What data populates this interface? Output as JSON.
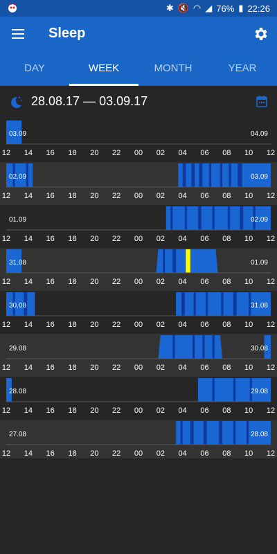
{
  "status": {
    "battery": "76%",
    "time": "22:26"
  },
  "appbar": {
    "title": "Sleep"
  },
  "tabs": [
    {
      "label": "DAY",
      "active": false
    },
    {
      "label": "WEEK",
      "active": true
    },
    {
      "label": "MONTH",
      "active": false
    },
    {
      "label": "YEAR",
      "active": false
    }
  ],
  "range_label": "28.08.17 — 03.09.17",
  "colors": {
    "bar": "#1a66d2",
    "deep": "#0c3a9e",
    "awake": "#ffff00",
    "row_band": "#333333",
    "text": "#ffffff"
  },
  "chart_data": {
    "type": "bar",
    "x_ticks": [
      "12",
      "14",
      "16",
      "18",
      "20",
      "22",
      "00",
      "02",
      "04",
      "06",
      "08",
      "10",
      "12"
    ],
    "rows": [
      {
        "left_label": "03.09",
        "right_label": "04.09",
        "sessions": [
          {
            "start": 0.0,
            "end": 1.4,
            "deep": []
          }
        ]
      },
      {
        "left_label": "02.09",
        "right_label": "03.09",
        "sessions": [
          {
            "start": 0.0,
            "end": 2.4,
            "deep": [
              [
                0.6,
                0.8
              ],
              [
                1.8,
                2.0
              ]
            ]
          },
          {
            "start": 15.6,
            "end": 24.0,
            "deep": [
              [
                16.0,
                16.3
              ],
              [
                16.8,
                17.1
              ],
              [
                17.5,
                17.8
              ],
              [
                18.4,
                18.6
              ],
              [
                19.4,
                19.6
              ],
              [
                20.2,
                20.4
              ],
              [
                21.0,
                21.4
              ]
            ]
          }
        ]
      },
      {
        "left_label": "01.09",
        "right_label": "02.09",
        "sessions": [
          {
            "start": 14.5,
            "end": 24.0,
            "deep": [
              [
                14.9,
                15.1
              ],
              [
                16.2,
                16.4
              ],
              [
                17.4,
                17.7
              ],
              [
                18.7,
                18.9
              ],
              [
                20.1,
                20.3
              ],
              [
                21.2,
                21.5
              ],
              [
                22.4,
                22.6
              ]
            ]
          }
        ]
      },
      {
        "left_label": "31.08",
        "right_label": "01.09",
        "sessions": [
          {
            "start": 0.0,
            "end": 1.4,
            "deep": []
          },
          {
            "start": 13.6,
            "end": 19.2,
            "deep": [
              [
                14.2,
                14.4
              ],
              [
                15.1,
                15.4
              ]
            ]
          }
        ],
        "awake": [
          [
            16.3,
            16.7
          ]
        ]
      },
      {
        "left_label": "30.08",
        "right_label": "31.08",
        "sessions": [
          {
            "start": 0.0,
            "end": 2.6,
            "deep": [
              [
                0.6,
                0.8
              ],
              [
                1.6,
                1.9
              ]
            ]
          },
          {
            "start": 15.4,
            "end": 24.0,
            "deep": [
              [
                15.9,
                16.2
              ],
              [
                17.0,
                17.2
              ],
              [
                18.1,
                18.3
              ],
              [
                19.5,
                19.7
              ],
              [
                20.6,
                20.9
              ],
              [
                22.0,
                22.2
              ]
            ]
          }
        ]
      },
      {
        "left_label": "29.08",
        "right_label": "30.08",
        "sessions": [
          {
            "start": 13.8,
            "end": 19.6,
            "deep": [
              [
                15.1,
                15.3
              ],
              [
                16.9,
                17.1
              ],
              [
                17.8,
                18.0
              ],
              [
                18.7,
                18.9
              ]
            ]
          },
          {
            "start": 23.4,
            "end": 24.0,
            "deep": []
          }
        ]
      },
      {
        "left_label": "28.08",
        "right_label": "29.08",
        "sessions": [
          {
            "start": 0.0,
            "end": 0.5,
            "deep": []
          },
          {
            "start": 17.4,
            "end": 24.0,
            "deep": [
              [
                18.7,
                18.9
              ],
              [
                20.6,
                20.8
              ],
              [
                22.1,
                22.3
              ]
            ]
          }
        ]
      },
      {
        "left_label": "27.08",
        "right_label": "28.08",
        "sessions": [
          {
            "start": 15.4,
            "end": 24.0,
            "deep": [
              [
                15.8,
                16.0
              ],
              [
                16.7,
                17.0
              ],
              [
                17.9,
                18.2
              ],
              [
                19.3,
                19.6
              ],
              [
                20.6,
                20.8
              ],
              [
                21.8,
                22.0
              ]
            ]
          }
        ]
      }
    ]
  }
}
